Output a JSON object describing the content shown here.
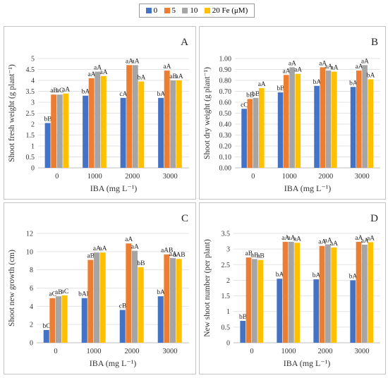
{
  "legend": {
    "items": [
      {
        "label": "0",
        "color": "#4472c4"
      },
      {
        "label": "5",
        "color": "#ed7d31"
      },
      {
        "label": "10",
        "color": "#a5a5a5"
      },
      {
        "label": "20 Fe (μM)",
        "color": "#ffc000"
      }
    ]
  },
  "chart_data": [
    {
      "type": "bar",
      "panel_letter": "A",
      "categories": [
        "0",
        "1000",
        "2000",
        "3000"
      ],
      "xlabel": "IBA (mg L⁻¹)",
      "ylabel": "Shoot fresh weight (g plant⁻¹)",
      "ylim": [
        0,
        5
      ],
      "yticks": [
        "0",
        "0.5",
        "1",
        "1.5",
        "2",
        "2.5",
        "3",
        "3.5",
        "4",
        "4.5",
        "5"
      ],
      "grid": true,
      "series": [
        {
          "name": "0",
          "values": [
            2.05,
            3.3,
            3.2,
            3.2
          ],
          "labels": [
            "bB",
            "bA",
            "cA",
            "bA"
          ]
        },
        {
          "name": "5",
          "values": [
            3.35,
            4.1,
            4.7,
            4.45
          ],
          "labels": [
            "aB",
            "aA",
            "aA",
            "aA"
          ]
        },
        {
          "name": "10",
          "values": [
            3.35,
            4.4,
            4.7,
            4.0
          ],
          "labels": [
            "aC",
            "aA",
            "aA",
            "aB"
          ]
        },
        {
          "name": "20",
          "values": [
            3.4,
            4.2,
            3.95,
            4.0
          ],
          "labels": [
            "aA",
            "aA",
            "bA",
            "aA"
          ]
        }
      ]
    },
    {
      "type": "bar",
      "panel_letter": "B",
      "categories": [
        "0",
        "1000",
        "2000",
        "3000"
      ],
      "xlabel": "IBA (mg L⁻¹)",
      "ylabel": "Shoot dry weight (g plant⁻¹)",
      "ylim": [
        0,
        1
      ],
      "yticks": [
        "0.00",
        "0.10",
        "0.20",
        "0.30",
        "0.40",
        "0.50",
        "0.60",
        "0.70",
        "0.80",
        "0.90",
        "1.00"
      ],
      "grid": true,
      "series": [
        {
          "name": "0",
          "values": [
            0.54,
            0.69,
            0.75,
            0.74
          ],
          "labels": [
            "cC",
            "bB",
            "bA",
            "bA"
          ]
        },
        {
          "name": "5",
          "values": [
            0.63,
            0.85,
            0.92,
            0.89
          ],
          "labels": [
            "bB",
            "aA",
            "aA",
            "aA"
          ]
        },
        {
          "name": "10",
          "values": [
            0.64,
            0.92,
            0.89,
            0.94
          ],
          "labels": [
            "bB",
            "aA",
            "aA",
            "aA"
          ]
        },
        {
          "name": "20",
          "values": [
            0.73,
            0.86,
            0.88,
            0.81
          ],
          "labels": [
            "aA",
            "aA",
            "aA",
            "bA"
          ]
        }
      ]
    },
    {
      "type": "bar",
      "panel_letter": "C",
      "categories": [
        "0",
        "1000",
        "2000",
        "3000"
      ],
      "xlabel": "IBA (mg L⁻¹)",
      "ylabel": "Shoot new growth (cm)",
      "ylim": [
        0,
        12
      ],
      "yticks": [
        "0",
        "2",
        "4",
        "6",
        "8",
        "10",
        "12"
      ],
      "grid": true,
      "series": [
        {
          "name": "0",
          "values": [
            1.4,
            4.9,
            3.6,
            5.1
          ],
          "labels": [
            "bC",
            "bAB",
            "cB",
            "bA"
          ]
        },
        {
          "name": "5",
          "values": [
            4.9,
            9.1,
            10.9,
            9.7
          ],
          "labels": [
            "aC",
            "aB",
            "aA",
            "aAB"
          ]
        },
        {
          "name": "10",
          "values": [
            5.1,
            9.9,
            10.1,
            9.3
          ],
          "labels": [
            "aB",
            "aA",
            "aA",
            "aA"
          ]
        },
        {
          "name": "20",
          "values": [
            5.2,
            9.9,
            8.3,
            9.2
          ],
          "labels": [
            "aC",
            "aA",
            "bB",
            "aAB"
          ]
        }
      ]
    },
    {
      "type": "bar",
      "panel_letter": "D",
      "categories": [
        "0",
        "1000",
        "2000",
        "3000"
      ],
      "xlabel": "IBA (mg L⁻¹)",
      "ylabel": "New shoot number (per plant)",
      "ylim": [
        0,
        3.5
      ],
      "yticks": [
        "0",
        "0.5",
        "1",
        "1.5",
        "2",
        "2.5",
        "3",
        "3.5"
      ],
      "grid": true,
      "series": [
        {
          "name": "0",
          "values": [
            0.7,
            2.05,
            2.03,
            2.0
          ],
          "labels": [
            "bB",
            "bA",
            "bA",
            "bA"
          ]
        },
        {
          "name": "5",
          "values": [
            2.73,
            3.23,
            3.1,
            3.23
          ],
          "labels": [
            "aB",
            "aA",
            "aA",
            "aA"
          ]
        },
        {
          "name": "10",
          "values": [
            2.68,
            3.23,
            3.15,
            3.14
          ],
          "labels": [
            "aB",
            "aA",
            "aA",
            "aA"
          ]
        },
        {
          "name": "20",
          "values": [
            2.65,
            3.2,
            3.05,
            3.22
          ],
          "labels": [
            "aB",
            "aA",
            "aA",
            "aA"
          ]
        }
      ]
    }
  ]
}
